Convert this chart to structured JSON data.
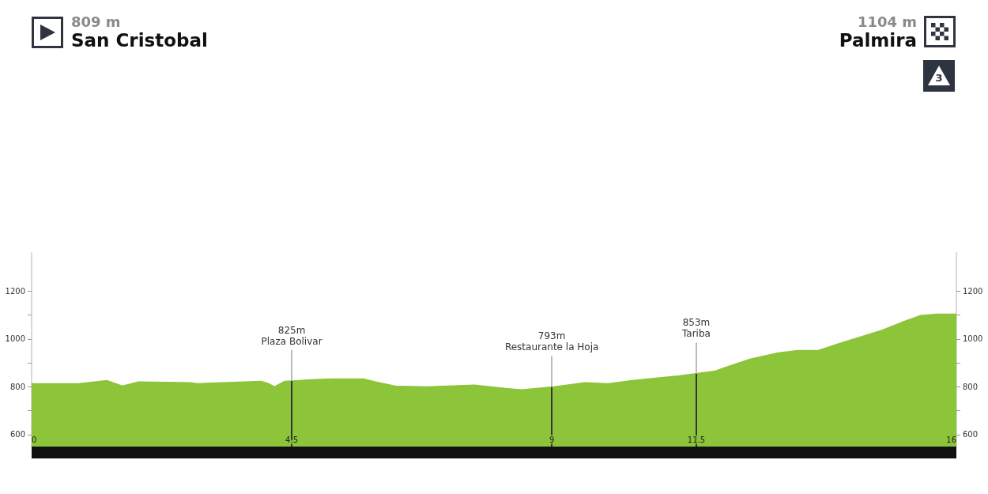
{
  "chart_data": {
    "type": "area",
    "x": [
      0,
      0.82,
      1.3,
      1.57,
      1.85,
      2.74,
      2.87,
      3.97,
      4.1,
      4.2,
      4.38,
      4.9,
      5.2,
      5.74,
      5.95,
      6.29,
      6.84,
      7.66,
      8.2,
      8.48,
      9.03,
      9.57,
      9.98,
      10.39,
      11.21,
      11.83,
      12.03,
      12.44,
      12.92,
      13.26,
      13.61,
      13.95,
      14.29,
      14.7,
      15.04,
      15.38,
      15.66,
      16
    ],
    "series": [
      {
        "color": "#8cc43a",
        "values": [
          813,
          813,
          826,
          803,
          820,
          817,
          813,
          823,
          813,
          800,
          823,
          830,
          833,
          833,
          820,
          803,
          800,
          807,
          793,
          787,
          800,
          817,
          813,
          826,
          846,
          866,
          883,
          916,
          942,
          952,
          952,
          979,
          1005,
          1035,
          1068,
          1098,
          1104,
          1104
        ]
      }
    ],
    "xlim": [
      0,
      16
    ],
    "xticks": [
      0,
      4.5,
      9,
      11.5,
      16
    ],
    "ylim": [
      550,
      1360
    ],
    "yticks": [
      600,
      {
        "value": 700,
        "label": null
      },
      800,
      {
        "value": 900,
        "label": null
      },
      1000,
      {
        "value": 1100,
        "label": null
      },
      1200
    ],
    "y2lim": [
      550,
      1360
    ],
    "y2ticks": [
      600,
      {
        "value": 700,
        "label": null
      },
      800,
      {
        "value": 900,
        "label": null
      },
      1000,
      {
        "value": 1100,
        "label": null
      },
      1200
    ],
    "ref_lines": [
      {
        "axis": "x",
        "value": 4.5,
        "label": "Plaza Bolivar",
        "color": "#333333"
      },
      {
        "axis": "x",
        "value": 9,
        "label": "Restaurante la Hoja",
        "color": "#333333"
      },
      {
        "axis": "x",
        "value": 11.5,
        "label": "Tariba",
        "color": "#333333"
      }
    ],
    "annotations": [
      "809 m",
      "San Cristobal",
      "1104 m",
      "Palmira",
      "3",
      "825m",
      "793m",
      "853m"
    ],
    "grid": false,
    "marker": "none"
  }
}
